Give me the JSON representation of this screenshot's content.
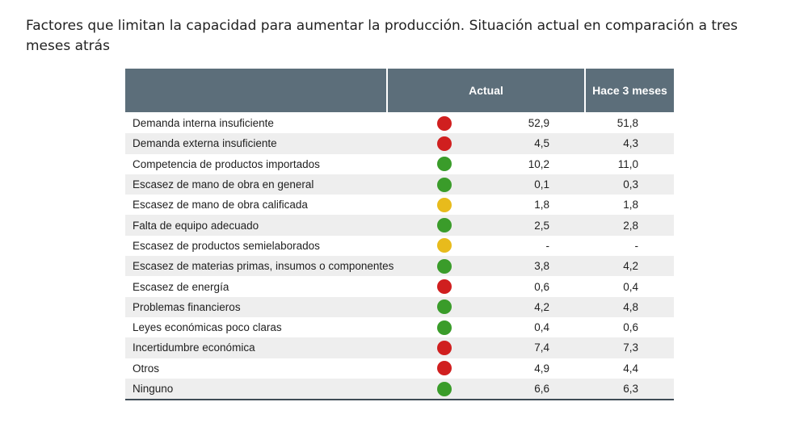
{
  "heading": "Factores que limitan la capacidad para aumentar la producción. Situación actual en comparación a tres meses atrás",
  "table": {
    "col_actual": "Actual",
    "col_prev": "Hace 3 meses",
    "colors": {
      "red": "#d01f1f",
      "green": "#3a9c2a",
      "yellow": "#e8bb1c"
    },
    "rows": [
      {
        "label": "Demanda interna insuficiente",
        "status": "red",
        "actual": "52,9",
        "prev": "51,8"
      },
      {
        "label": "Demanda externa insuficiente",
        "status": "red",
        "actual": "4,5",
        "prev": "4,3"
      },
      {
        "label": "Competencia de productos importados",
        "status": "green",
        "actual": "10,2",
        "prev": "11,0"
      },
      {
        "label": "Escasez de mano de obra en general",
        "status": "green",
        "actual": "0,1",
        "prev": "0,3"
      },
      {
        "label": "Escasez de mano de obra calificada",
        "status": "yellow",
        "actual": "1,8",
        "prev": "1,8"
      },
      {
        "label": "Falta de equipo adecuado",
        "status": "green",
        "actual": "2,5",
        "prev": "2,8"
      },
      {
        "label": "Escasez de productos semielaborados",
        "status": "yellow",
        "actual": "-",
        "prev": "-"
      },
      {
        "label": "Escasez de materias primas, insumos o componentes",
        "status": "green",
        "actual": "3,8",
        "prev": "4,2"
      },
      {
        "label": "Escasez de energía",
        "status": "red",
        "actual": "0,6",
        "prev": "0,4"
      },
      {
        "label": "Problemas financieros",
        "status": "green",
        "actual": "4,2",
        "prev": "4,8"
      },
      {
        "label": "Leyes económicas poco claras",
        "status": "green",
        "actual": "0,4",
        "prev": "0,6"
      },
      {
        "label": "Incertidumbre económica",
        "status": "red",
        "actual": "7,4",
        "prev": "7,3"
      },
      {
        "label": "Otros",
        "status": "red",
        "actual": "4,9",
        "prev": "4,4"
      },
      {
        "label": "Ninguno",
        "status": "green",
        "actual": "6,6",
        "prev": "6,3"
      }
    ]
  }
}
